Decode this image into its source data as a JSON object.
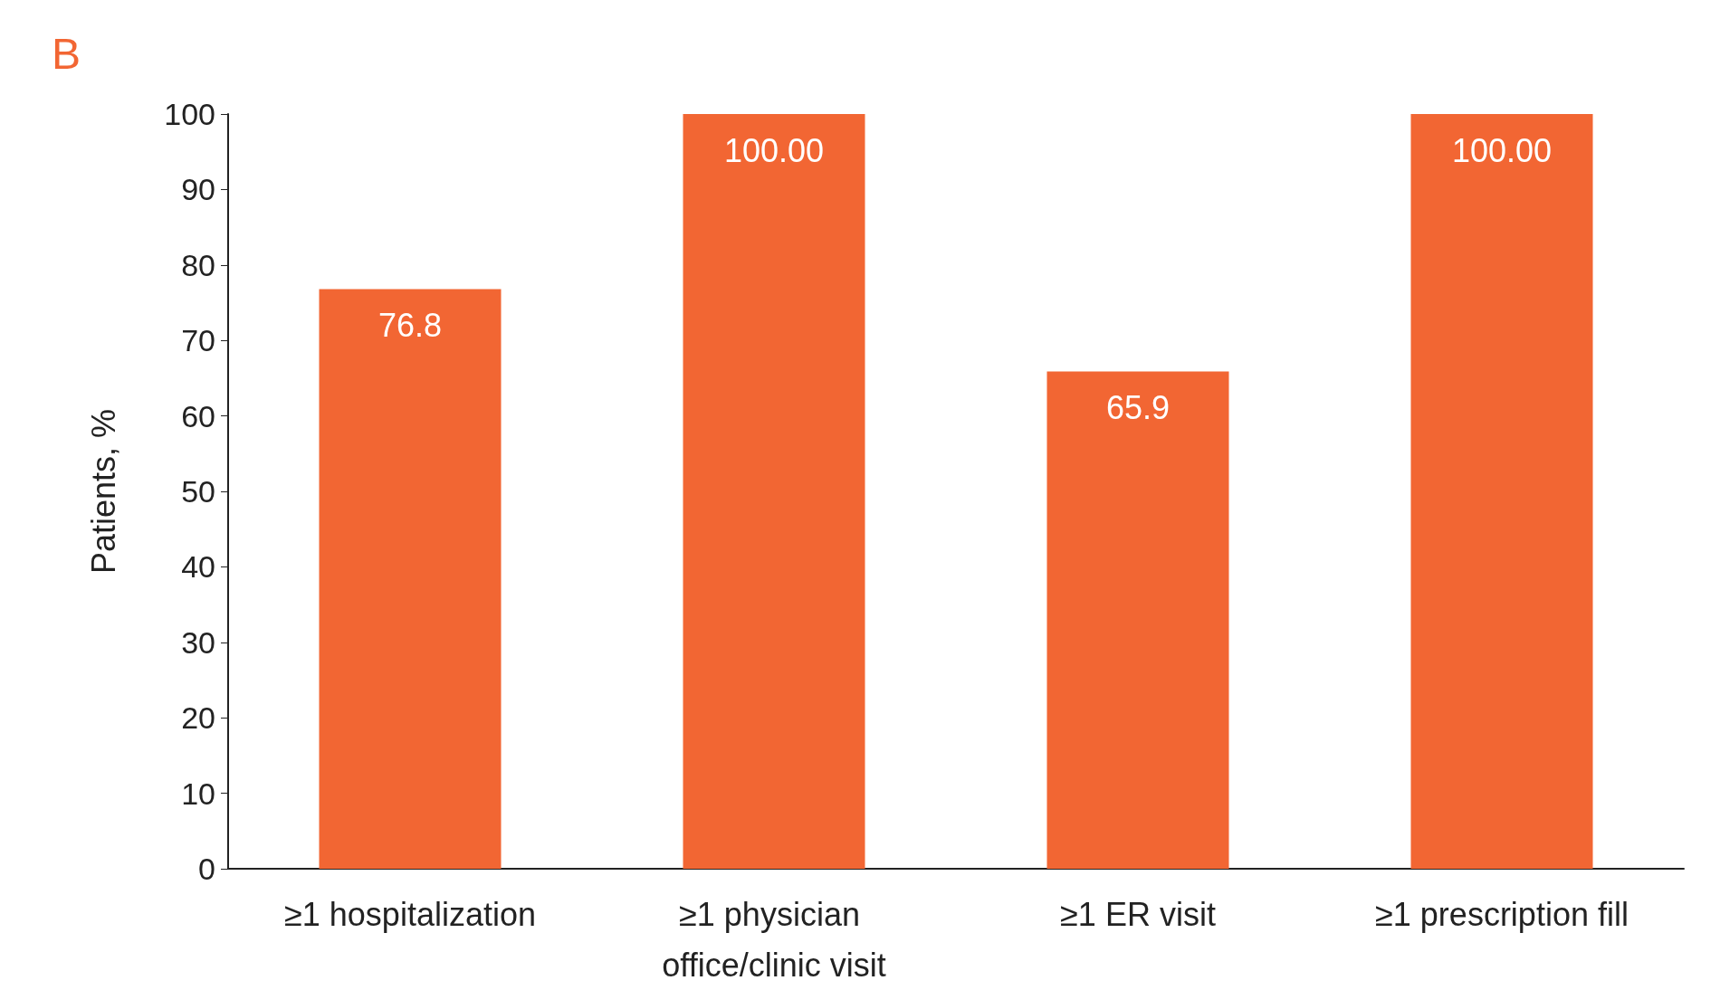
{
  "chart_data": {
    "type": "bar",
    "title": "B",
    "ylabel": "Patients, %",
    "categories": [
      "≥1 hospitalization",
      "≥1 physician office/clinic visit",
      "≥1 ER visit",
      "≥1 prescription fill"
    ],
    "values": [
      76.8,
      100,
      65.9,
      100
    ],
    "value_labels": [
      "76.8",
      "100.00",
      "65.9",
      "100.00"
    ],
    "color": "#f26633",
    "ylim": [
      0,
      100
    ],
    "yticks": [
      0,
      10,
      20,
      30,
      40,
      50,
      60,
      70,
      80,
      90,
      100
    ],
    "grid": false
  }
}
